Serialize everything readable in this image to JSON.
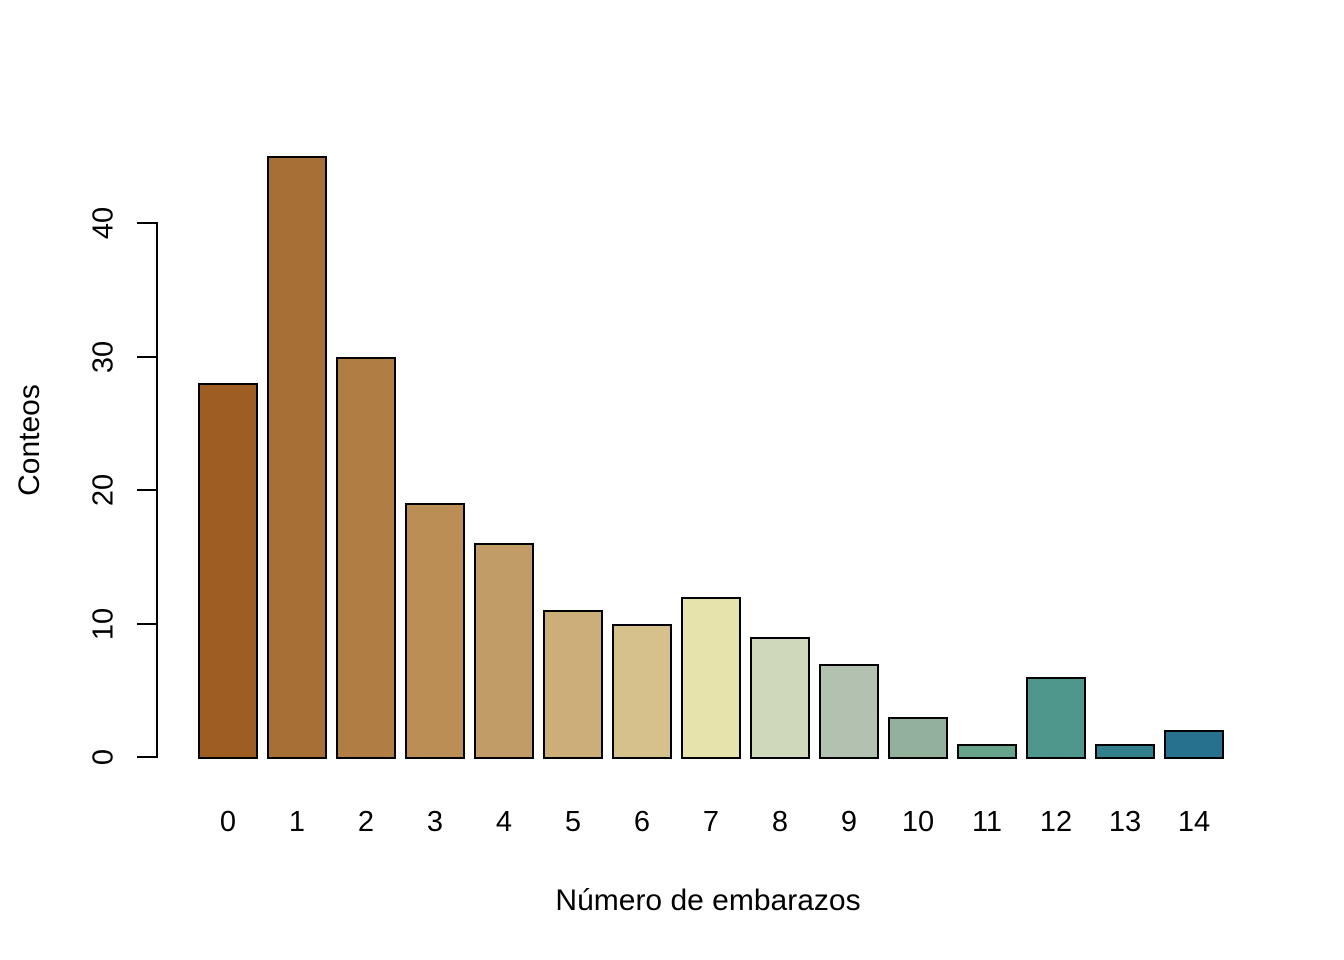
{
  "chart_data": {
    "type": "bar",
    "title": "",
    "xlabel": "Número de embarazos",
    "ylabel": "Conteos",
    "categories": [
      "0",
      "1",
      "2",
      "3",
      "4",
      "5",
      "6",
      "7",
      "8",
      "9",
      "10",
      "11",
      "12",
      "13",
      "14"
    ],
    "values": [
      28,
      45,
      30,
      19,
      16,
      11,
      10,
      12,
      9,
      7,
      3,
      1,
      6,
      1,
      2
    ],
    "bar_colors": [
      "#9E5E22",
      "#A76F36",
      "#B07E44",
      "#BA8E55",
      "#C29C66",
      "#CCAE79",
      "#D6C18C",
      "#E7E3AC",
      "#CFD8BA",
      "#B2C1B0",
      "#92B09C",
      "#68A38C",
      "#4F968D",
      "#32808E",
      "#27718F"
    ],
    "yticks": [
      0,
      10,
      20,
      30,
      40
    ],
    "ylim": [
      0,
      45
    ],
    "grid": false,
    "legend": "none",
    "axis_color": "#000000",
    "bar_border_color": "#000000",
    "background_color": "#FFFFFF"
  }
}
